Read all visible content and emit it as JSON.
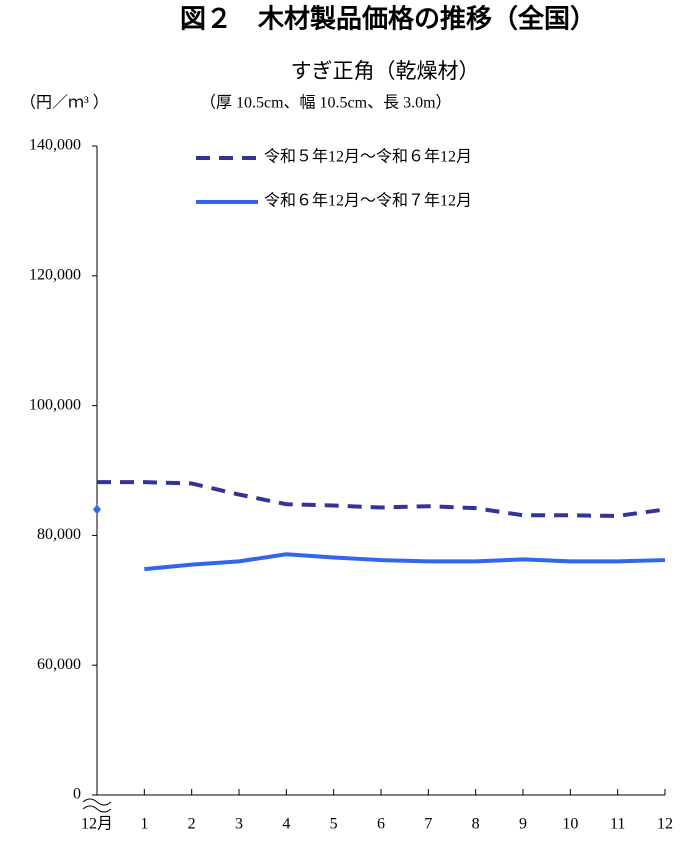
{
  "chart_data": {
    "type": "line",
    "title": "図２　木材製品価格の推移（全国）",
    "subtitle": "すぎ正角（乾燥材）",
    "y_unit": "（円／ｍ³ ）",
    "specification": "（厚 10.5cm、幅 10.5cm、長 3.0m）",
    "categories": [
      "12月",
      "1",
      "2",
      "3",
      "4",
      "5",
      "6",
      "7",
      "8",
      "9",
      "10",
      "11",
      "12"
    ],
    "series": [
      {
        "name": "令和５年12月～令和６年12月",
        "color": "#333399",
        "dashed": true,
        "values": [
          88200,
          88200,
          88000,
          86300,
          84800,
          84600,
          84300,
          84500,
          84200,
          83100,
          83100,
          83000,
          84000
        ]
      },
      {
        "name": "令和６年12月～令和７年12月",
        "color": "#3366ee",
        "dashed": false,
        "first_point_marker_only": true,
        "values": [
          84000,
          74800,
          75500,
          76000,
          77100,
          76600,
          76200,
          76000,
          76000,
          76300,
          76000,
          76000,
          76200
        ]
      }
    ],
    "ylim": [
      0,
      140000
    ],
    "ybreak": [
      0,
      40000
    ],
    "yticks": [
      0,
      {
        "value": 60000,
        "label": "60,000"
      },
      {
        "value": 80000,
        "label": "80,000"
      },
      {
        "value": 100000,
        "label": "100,000"
      },
      {
        "value": 120000,
        "label": "120,000"
      },
      {
        "value": 140000,
        "label": "140,000"
      }
    ],
    "grid": false,
    "legend": "top"
  }
}
